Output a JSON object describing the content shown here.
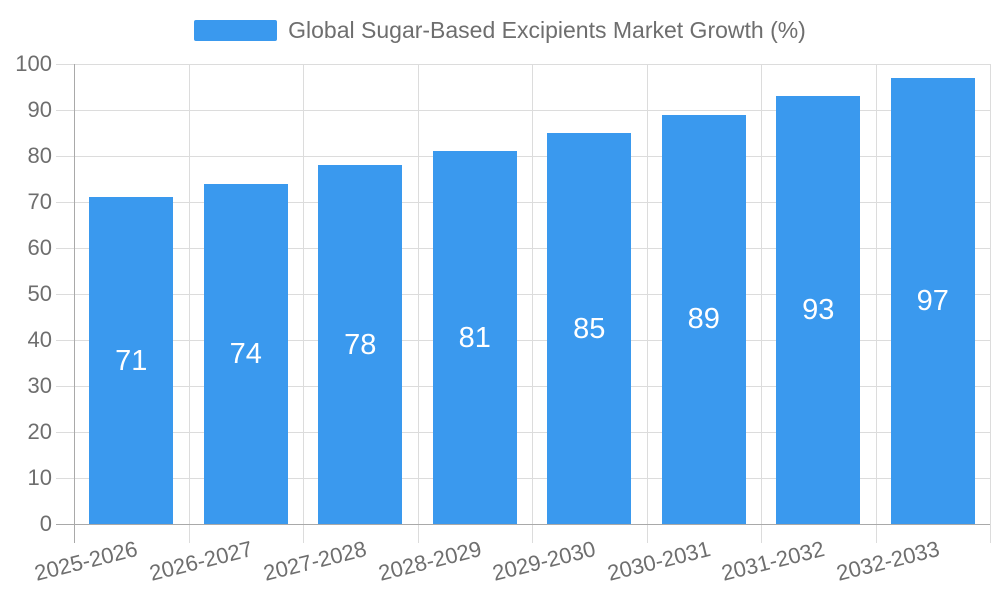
{
  "legend": {
    "series_label": "Global Sugar-Based Excipients Market Growth (%)"
  },
  "chart_data": {
    "type": "bar",
    "title": "Global Sugar-Based Excipients Market Growth (%)",
    "categories": [
      "2025-2026",
      "2026-2027",
      "2027-2028",
      "2028-2029",
      "2029-2030",
      "2030-2031",
      "2031-2032",
      "2032-2033"
    ],
    "values": [
      71,
      74,
      78,
      81,
      85,
      89,
      93,
      97
    ],
    "xlabel": "",
    "ylabel": "",
    "ylim": [
      0,
      100
    ],
    "yticks": [
      0,
      10,
      20,
      30,
      40,
      50,
      60,
      70,
      80,
      90,
      100
    ],
    "grid": true,
    "legend_position": "top-center",
    "bar_label_position": "inside-middle",
    "x_label_rotation_deg": -14,
    "colors": {
      "bar": "#3A99EE",
      "bar_label": "#FFFFFF",
      "gridline": "#DCDCDC",
      "axis_line": "#A9A9A9",
      "text": "#6E6E6E",
      "background": "#FFFFFF"
    }
  }
}
